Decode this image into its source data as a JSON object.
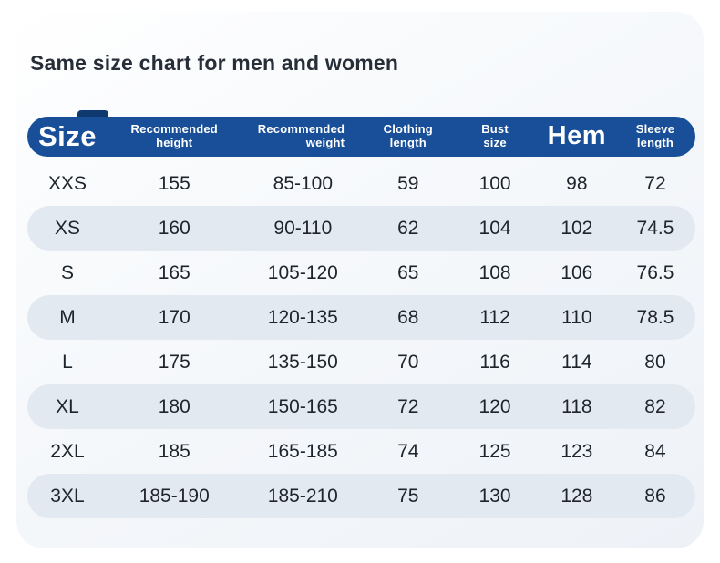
{
  "page": {
    "title": "Same size chart for men and women"
  },
  "colors": {
    "header_blue": "#194f99",
    "corner_tab_blue": "#0d396f",
    "stripe": "#e3e9f1",
    "card_background": "#eef2f7",
    "title_text": "#272e37",
    "cell_text": "#1e242b"
  },
  "table": {
    "header": [
      {
        "label": "Size",
        "style": "lg",
        "align": "center"
      },
      {
        "label": "Recommended\nheight",
        "style": "sm",
        "align": "center"
      },
      {
        "label": "Recommended\nweight",
        "style": "sm",
        "align": "right"
      },
      {
        "label": "Clothing\nlength",
        "style": "sm",
        "align": "center"
      },
      {
        "label": "Bust\nsize",
        "style": "sm",
        "align": "center"
      },
      {
        "label": "Hem",
        "style": "lg-hem",
        "align": "center"
      },
      {
        "label": "Sleeve\nlength",
        "style": "sm",
        "align": "center"
      }
    ]
  },
  "chart_data": {
    "type": "table",
    "title": "Same size chart for men and women",
    "columns": [
      "Size",
      "Recommended height",
      "Recommended weight",
      "Clothing length",
      "Bust size",
      "Hem",
      "Sleeve length"
    ],
    "rows": [
      [
        "XXS",
        "155",
        "85-100",
        "59",
        "100",
        "98",
        "72"
      ],
      [
        "XS",
        "160",
        "90-110",
        "62",
        "104",
        "102",
        "74.5"
      ],
      [
        "S",
        "165",
        "105-120",
        "65",
        "108",
        "106",
        "76.5"
      ],
      [
        "M",
        "170",
        "120-135",
        "68",
        "112",
        "110",
        "78.5"
      ],
      [
        "L",
        "175",
        "135-150",
        "70",
        "116",
        "114",
        "80"
      ],
      [
        "XL",
        "180",
        "150-165",
        "72",
        "120",
        "118",
        "82"
      ],
      [
        "2XL",
        "185",
        "165-185",
        "74",
        "125",
        "123",
        "84"
      ],
      [
        "3XL",
        "185-190",
        "185-210",
        "75",
        "130",
        "128",
        "86"
      ]
    ],
    "layout": {
      "striped_rows": "even (XS, M, XL, 3XL)",
      "header_background": "#194f99",
      "header_text_color": "#ffffff"
    }
  }
}
